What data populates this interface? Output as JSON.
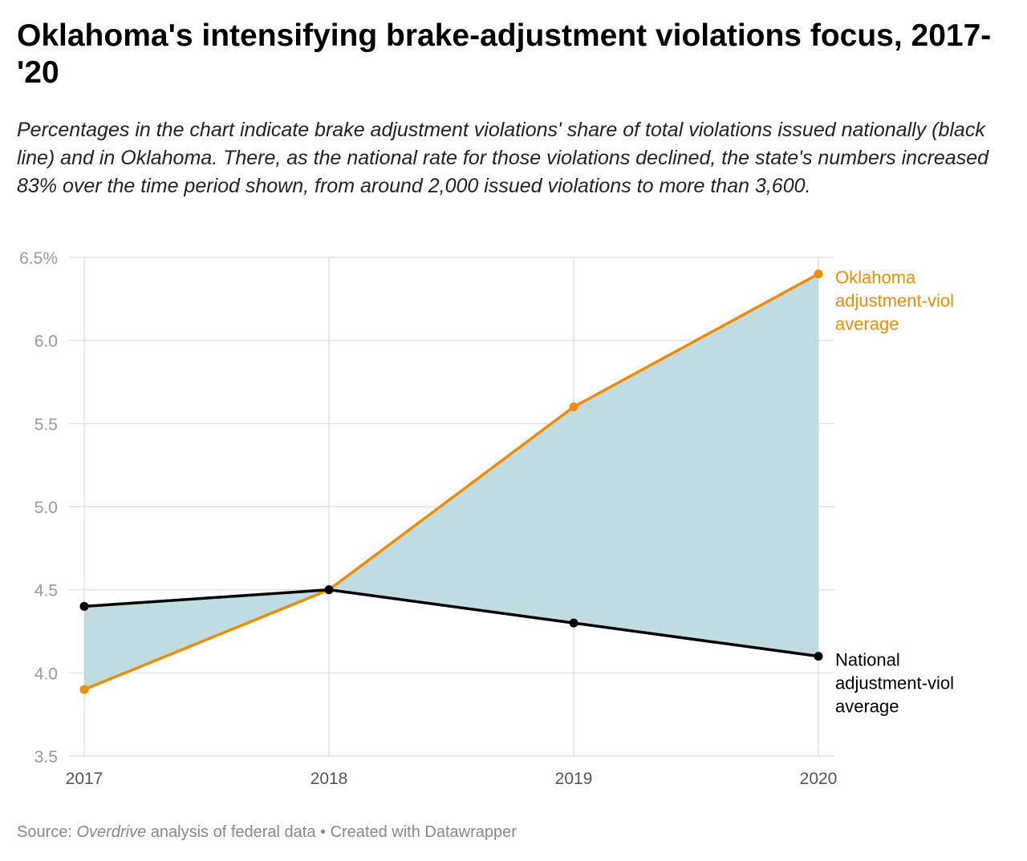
{
  "title": "Oklahoma's intensifying brake-adjustment violations focus, 2017-'20",
  "subtitle": "Percentages in the chart indicate brake adjustment violations' share of total violations issued nationally (black line) and in Oklahoma. There, as the national rate for those violations declined, the state's numbers increased 83% over the time period shown, from around 2,000 issued violations to more than 3,600.",
  "source": {
    "label": "Source:",
    "name": "Overdrive",
    "rest": "analysis of federal data • Created with Datawrapper"
  },
  "chart_data": {
    "type": "line",
    "x": [
      "2017",
      "2018",
      "2019",
      "2020"
    ],
    "ylim": [
      3.5,
      6.5
    ],
    "yticks": [
      "6.5%",
      "6.0",
      "5.5",
      "5.0",
      "4.5",
      "4.0",
      "3.5"
    ],
    "grid": true,
    "fill_between_series": true,
    "colors": {
      "oklahoma": "#f08c00",
      "national": "#000000",
      "fill": "#bcdae2"
    },
    "series": [
      {
        "name": "Oklahoma adjustment-viol average",
        "label_lines": [
          "Oklahoma",
          "adjustment-viol",
          "average"
        ],
        "values": [
          3.9,
          4.5,
          5.6,
          6.4
        ],
        "color": "#f08c00"
      },
      {
        "name": "National adjustment-viol average",
        "label_lines": [
          "National",
          "adjustment-viol",
          "average"
        ],
        "values": [
          4.4,
          4.5,
          4.3,
          4.1
        ],
        "color": "#000000"
      }
    ]
  }
}
